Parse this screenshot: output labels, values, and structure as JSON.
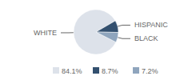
{
  "chart_data": {
    "type": "pie",
    "categories": [
      "WHITE",
      "HISPANIC",
      "BLACK"
    ],
    "values": [
      84.1,
      8.7,
      7.2
    ],
    "value_labels": [
      "84.1%",
      "8.7%",
      "7.2%"
    ],
    "colors": [
      "#dde2ea",
      "#33506f",
      "#8fa5bd"
    ]
  }
}
